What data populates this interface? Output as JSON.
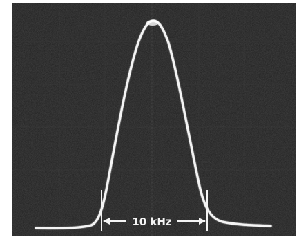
{
  "photo": {
    "subject": "oscilloscope-trace",
    "background_color": "#1f1f1f",
    "trace_color": "#f4f4f4",
    "grid_color": "#3a3a3a",
    "bandwidth_label": "10 kHz"
  }
}
